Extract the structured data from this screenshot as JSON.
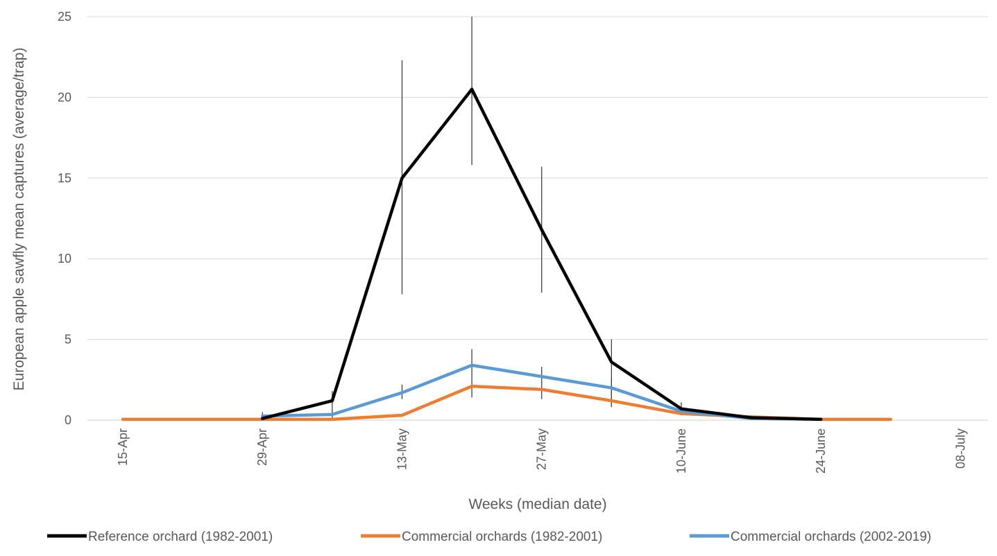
{
  "chart_data": {
    "type": "line",
    "title": "",
    "xlabel": "Weeks (median date)",
    "ylabel": "European apple sawfly mean captures (average/trap)",
    "ylim": [
      0,
      25
    ],
    "yticks": [
      0,
      5,
      10,
      15,
      20,
      25
    ],
    "xlim": [
      0,
      12
    ],
    "x_tick_positions": [
      0,
      2,
      4,
      6,
      8,
      10,
      12
    ],
    "x_tick_labels": [
      "15-Apr",
      "29-Apr",
      "13-May",
      "27-May",
      "10-June",
      "24-June",
      "08-July"
    ],
    "grid": true,
    "legend_position": "bottom",
    "series": [
      {
        "name": "Reference orchard (1982-2001)",
        "color": "#000000",
        "x": [
          2,
          3,
          4,
          5,
          6,
          7,
          8,
          9,
          10
        ],
        "values": [
          0.1,
          1.2,
          15.0,
          20.5,
          11.8,
          3.6,
          0.7,
          0.15,
          0.05
        ],
        "error_low": [
          0.0,
          0.5,
          7.8,
          15.8,
          7.9,
          1.0,
          0.3,
          null,
          null
        ],
        "error_high": [
          0.2,
          1.8,
          22.3,
          25.0,
          15.7,
          5.0,
          1.1,
          null,
          null
        ]
      },
      {
        "name": "Commercial orchards (1982-2001)",
        "color": "#ED7D31",
        "x": [
          0,
          1,
          2,
          3,
          4,
          5,
          6,
          7,
          8,
          9,
          10,
          11
        ],
        "values": [
          0.05,
          0.05,
          0.05,
          0.05,
          0.3,
          2.1,
          1.9,
          1.2,
          0.4,
          0.2,
          0.05,
          0.05
        ],
        "error_low": [],
        "error_high": []
      },
      {
        "name": "Commercial orchards (2002-2019)",
        "color": "#5B9BD5",
        "x": [
          2,
          3,
          4,
          5,
          6,
          7,
          8,
          9,
          10
        ],
        "values": [
          0.25,
          0.35,
          1.7,
          3.4,
          2.7,
          2.0,
          0.55,
          0.1,
          0.05
        ],
        "error_low": [
          0.0,
          0.0,
          1.3,
          1.4,
          1.3,
          0.8,
          0.3,
          null,
          null
        ],
        "error_high": [
          0.5,
          0.6,
          2.2,
          4.4,
          3.3,
          2.6,
          0.8,
          null,
          null
        ]
      }
    ]
  }
}
